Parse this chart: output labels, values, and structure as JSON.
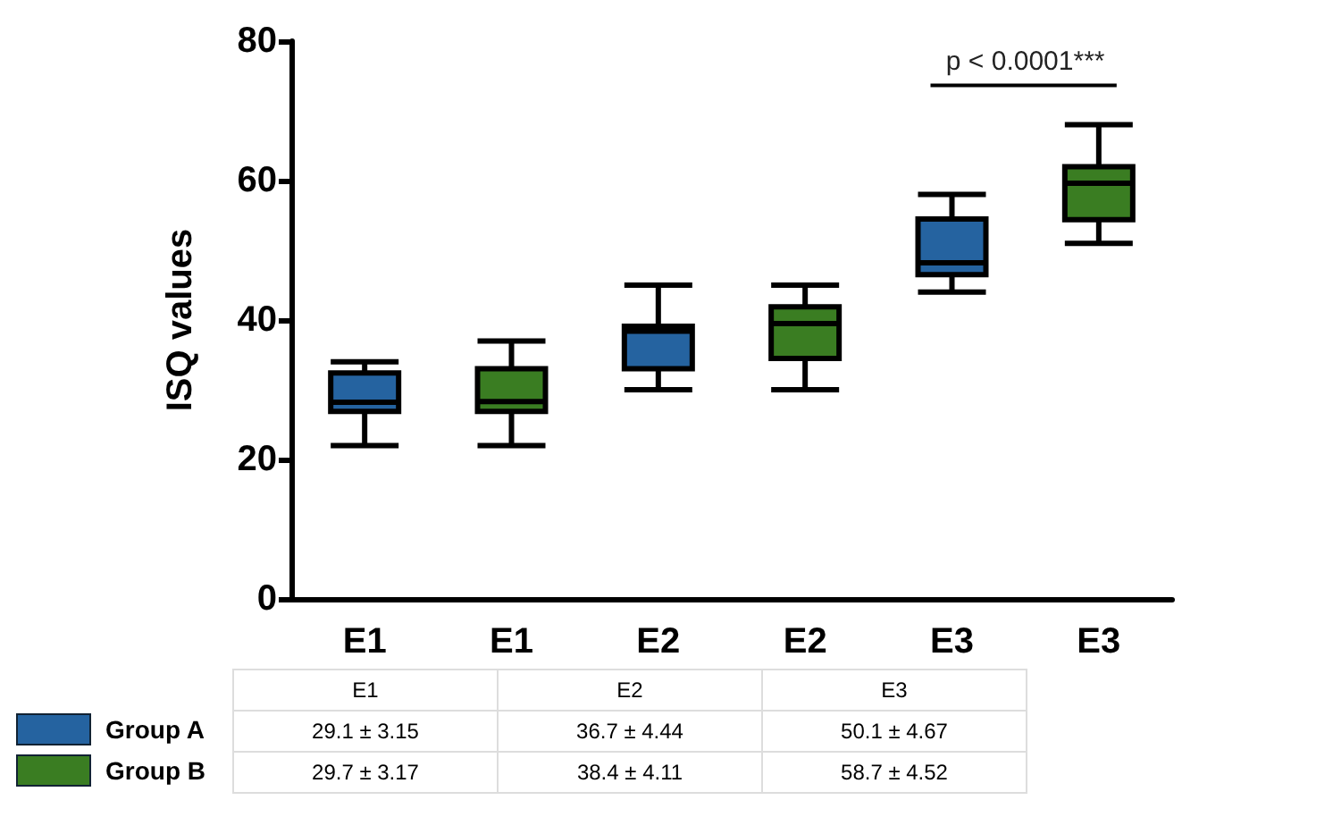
{
  "chart_data": {
    "type": "box",
    "ylabel": "ISQ values",
    "categories": [
      "E1",
      "E1",
      "E2",
      "E2",
      "E3",
      "E3"
    ],
    "ylim": [
      0,
      80
    ],
    "yticks": [
      0,
      20,
      40,
      60,
      80
    ],
    "grid": false,
    "legend": "bottom",
    "series": [
      {
        "name": "Group A",
        "color": "#2563a0",
        "boxes": [
          {
            "low": 22,
            "q1": 26.9,
            "median": 28.2,
            "q3": 32.4,
            "high": 34
          },
          null,
          {
            "low": 30,
            "q1": 33,
            "median": 38.4,
            "q3": 39.1,
            "high": 45
          },
          null,
          {
            "low": 44,
            "q1": 46.5,
            "median": 48.2,
            "q3": 54.5,
            "high": 58
          },
          null
        ]
      },
      {
        "name": "Group B",
        "color": "#3a7d22",
        "boxes": [
          null,
          {
            "low": 22,
            "q1": 26.9,
            "median": 28.3,
            "q3": 33,
            "high": 37
          },
          null,
          {
            "low": 30,
            "q1": 34.5,
            "median": 39.5,
            "q3": 41.9,
            "high": 45
          },
          null,
          {
            "low": 51,
            "q1": 54.4,
            "median": 59.6,
            "q3": 62,
            "high": 68
          }
        ]
      }
    ],
    "annotations": [
      "p < 0.0001***",
      "E1",
      "E2",
      "E3",
      "29.1 ± 3.15",
      "36.7 ± 4.44",
      "50.1 ± 4.67",
      "29.7 ± 3.17",
      "38.4 ± 4.11",
      "58.7 ± 4.52"
    ]
  }
}
